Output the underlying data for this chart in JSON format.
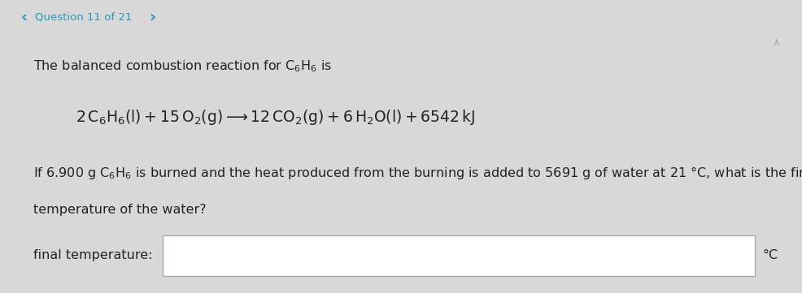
{
  "bg_outer": "#d8d8d8",
  "bg_nav": "#d8d8d8",
  "bg_panel": "#ffffff",
  "nav_text_color": "#2299bb",
  "text_color": "#222222",
  "eq_color": "#222222",
  "font_size_nav": 9.5,
  "font_size_body": 11.5,
  "font_size_eq": 13.5,
  "nav_str": "Question 11 of 21",
  "label_str": "final temperature:",
  "unit_str": "°C",
  "box_border_color": "#aaaaaa"
}
